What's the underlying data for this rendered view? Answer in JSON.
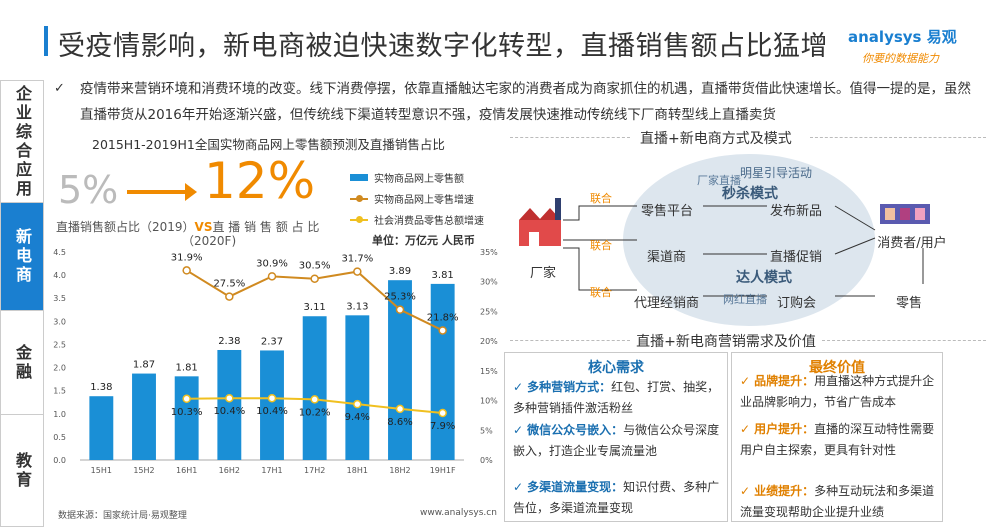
{
  "header": {
    "title": "受疫情影响，新电商被迫快速数字化转型，直播销售额占比猛增",
    "logo": "analysys 易观",
    "logo_tagline": "你要的数据能力"
  },
  "side_nav": {
    "items": [
      {
        "label": "企业综合应用",
        "active": false
      },
      {
        "label": "新电商",
        "active": true
      },
      {
        "label": "金融",
        "active": false
      },
      {
        "label": "教育",
        "active": false
      }
    ]
  },
  "intro": {
    "check": "✓",
    "text": "疫情带来营销环境和消费环境的改变。线下消费停摆，依靠直播触达宅家的消费者成为商家抓住的机遇，直播带货借此快速增长。值得一提的是，虽然直播带货从2016年开始逐渐兴盛，但传统线下渠道转型意识不强，疫情发展快速推动传统线下厂商转型线上直播卖货"
  },
  "highlight": {
    "from_value": "5%",
    "to_value": "12%",
    "label_left": "直播销售额占比（2019）",
    "vs": "VS",
    "label_right": "直 播 销 售 额 占 比",
    "label_right_year": "（2020F)"
  },
  "chart_data": {
    "type": "bar",
    "title": "2015H1-2019H1全国实物商品网上零售额预测及直播销售占比",
    "unit": "单位：万亿元 人民币",
    "categories": [
      "15H1",
      "15H2",
      "16H1",
      "16H2",
      "17H1",
      "17H2",
      "18H1",
      "18H2",
      "19H1F"
    ],
    "series": [
      {
        "name": "实物商品网上零售额",
        "type": "bar",
        "axis": "left",
        "color": "#1a8fd6",
        "values": [
          1.38,
          1.87,
          1.81,
          2.38,
          2.37,
          3.11,
          3.13,
          3.89,
          3.81
        ],
        "labels": [
          "1.38",
          "1.87",
          "1.81",
          "2.38",
          "2.37",
          "3.11",
          "3.13",
          "3.89",
          "3.81"
        ]
      },
      {
        "name": "实物商品网上零售增速",
        "type": "line",
        "axis": "right",
        "color": "#d08a20",
        "values": [
          null,
          null,
          31.9,
          27.5,
          30.9,
          30.5,
          31.7,
          25.3,
          21.8
        ],
        "labels": [
          "",
          "",
          "31.9%",
          "27.5%",
          "30.9%",
          "30.5%",
          "31.7%",
          "25.3%",
          "21.8%"
        ]
      },
      {
        "name": "社会消费品零售总额增速",
        "type": "line",
        "axis": "right",
        "color": "#f0c020",
        "values": [
          null,
          null,
          10.3,
          10.4,
          10.4,
          10.2,
          9.4,
          8.6,
          7.9
        ],
        "labels": [
          "",
          "",
          "10.3%",
          "10.4%",
          "10.4%",
          "10.2%",
          "9.4%",
          "8.6%",
          "7.9%"
        ]
      }
    ],
    "y_left": {
      "min": 0,
      "max": 4.5,
      "ticks": [
        "0.0",
        "0.5",
        "1.0",
        "1.5",
        "2.0",
        "2.5",
        "3.0",
        "3.5",
        "4.0",
        "4.5"
      ]
    },
    "y_right": {
      "min": 0,
      "max": 35,
      "ticks": [
        "0%",
        "5%",
        "10%",
        "15%",
        "20%",
        "25%",
        "30%",
        "35%"
      ]
    },
    "grid": false,
    "legend": "top-right"
  },
  "source": {
    "left": "数据来源：国家统计局·易观整理",
    "right": "www.analysys.cn"
  },
  "flow": {
    "section_title": "直播+新电商方式及模式",
    "start": "厂家",
    "links": [
      "联合",
      "联合",
      "联合"
    ],
    "col1": [
      "零售平台",
      "渠道商",
      "代理经销商"
    ],
    "col2": [
      "发布新品",
      "直播促销",
      "订购会"
    ],
    "end": "消费者/用户",
    "end2": "零售",
    "word_cloud": [
      "明星引导活动",
      "厂家直播",
      "秒杀模式",
      "达人模式",
      "网红直播"
    ]
  },
  "demand": {
    "section_title": "直播+新电商营销需求及价值",
    "core": {
      "title": "核心需求",
      "items": [
        {
          "key": "多种营销方式：",
          "text": "红包、打赏、抽奖，多种营销插件激活粉丝"
        },
        {
          "key": "微信公众号嵌入：",
          "text": "与微信公众号深度嵌入，打造企业专属流量池"
        },
        {
          "key": "多渠道流量变现：",
          "text": "知识付费、多种广告位，多渠道流量变现"
        }
      ]
    },
    "value": {
      "title": "最终价值",
      "items": [
        {
          "key": "品牌提升：",
          "text": "用直播这种方式提升企业品牌影响力，节省广告成本"
        },
        {
          "key": "用户提升：",
          "text": "直播的深互动特性需要用户自主探索，更具有针对性"
        },
        {
          "key": "业绩提升：",
          "text": "多种互动玩法和多渠道流量变现帮助企业提升业绩"
        }
      ]
    }
  }
}
